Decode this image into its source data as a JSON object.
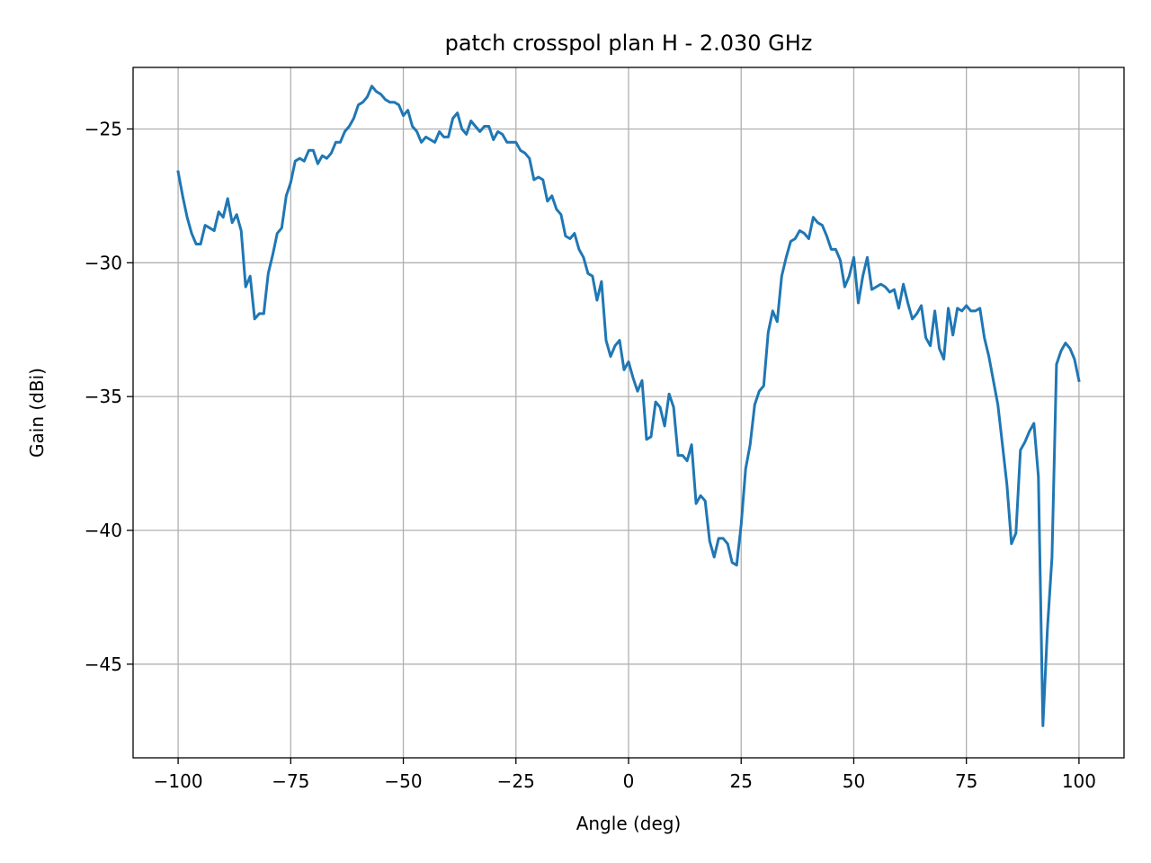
{
  "chart_data": {
    "type": "line",
    "title": "patch crosspol plan H - 2.030 GHz",
    "xlabel": "Angle (deg)",
    "ylabel": "Gain (dBi)",
    "xlim": [
      -110,
      110
    ],
    "ylim": [
      -48.5,
      -22.7
    ],
    "xticks": [
      -100,
      -75,
      -50,
      -25,
      0,
      25,
      50,
      75,
      100
    ],
    "xtick_labels": [
      "−100",
      "−75",
      "−50",
      "−25",
      "0",
      "25",
      "50",
      "75",
      "100"
    ],
    "yticks": [
      -25,
      -30,
      -35,
      -40,
      -45
    ],
    "ytick_labels": [
      "−25",
      "−30",
      "−35",
      "−40",
      "−45"
    ],
    "grid": true,
    "line_color": "#1f77b4",
    "series": [
      {
        "x": [
          -100,
          -99,
          -98,
          -97,
          -96,
          -95,
          -94,
          -93,
          -92,
          -91,
          -90,
          -89,
          -88,
          -87,
          -86,
          -85,
          -84,
          -83,
          -82,
          -81,
          -80,
          -79,
          -78,
          -77,
          -76,
          -75,
          -74,
          -73,
          -72,
          -71,
          -70,
          -69,
          -68,
          -67,
          -66,
          -65,
          -64,
          -63,
          -62,
          -61,
          -60,
          -59,
          -58,
          -57,
          -56,
          -55,
          -54,
          -53,
          -52,
          -51,
          -50,
          -49,
          -48,
          -47,
          -46,
          -45,
          -44,
          -43,
          -42,
          -41,
          -40,
          -39,
          -38,
          -37,
          -36,
          -35,
          -34,
          -33,
          -32,
          -31,
          -30,
          -29,
          -28,
          -27,
          -26,
          -25,
          -24,
          -23,
          -22,
          -21,
          -20,
          -19,
          -18,
          -17,
          -16,
          -15,
          -14,
          -13,
          -12,
          -11,
          -10,
          -9,
          -8,
          -7,
          -6,
          -5,
          -4,
          -3,
          -2,
          -1,
          0,
          1,
          2,
          3,
          4,
          5,
          6,
          7,
          8,
          9,
          10,
          11,
          12,
          13,
          14,
          15,
          16,
          17,
          18,
          19,
          20,
          21,
          22,
          23,
          24,
          25,
          26,
          27,
          28,
          29,
          30,
          31,
          32,
          33,
          34,
          35,
          36,
          37,
          38,
          39,
          40,
          41,
          42,
          43,
          44,
          45,
          46,
          47,
          48,
          49,
          50,
          51,
          52,
          53,
          54,
          55,
          56,
          57,
          58,
          59,
          60,
          61,
          62,
          63,
          64,
          65,
          66,
          67,
          68,
          69,
          70,
          71,
          72,
          73,
          74,
          75,
          76,
          77,
          78,
          79,
          80,
          81,
          82,
          83,
          84,
          85,
          86,
          87,
          88,
          89,
          90,
          91,
          92,
          93,
          94,
          95,
          96,
          97,
          98,
          99,
          100
        ],
        "y": [
          -26.6,
          -27.5,
          -28.3,
          -28.9,
          -29.3,
          -29.3,
          -28.6,
          -28.7,
          -28.8,
          -28.1,
          -28.3,
          -27.6,
          -28.5,
          -28.2,
          -28.8,
          -30.9,
          -30.5,
          -32.1,
          -31.9,
          -31.9,
          -30.4,
          -29.7,
          -28.9,
          -28.7,
          -27.5,
          -27.0,
          -26.2,
          -26.1,
          -26.2,
          -25.8,
          -25.8,
          -26.3,
          -26.0,
          -26.1,
          -25.9,
          -25.5,
          -25.5,
          -25.1,
          -24.9,
          -24.6,
          -24.1,
          -24.0,
          -23.8,
          -23.4,
          -23.6,
          -23.7,
          -23.9,
          -24.0,
          -24.0,
          -24.1,
          -24.5,
          -24.3,
          -24.9,
          -25.1,
          -25.5,
          -25.3,
          -25.4,
          -25.5,
          -25.1,
          -25.3,
          -25.3,
          -24.6,
          -24.4,
          -25.0,
          -25.2,
          -24.7,
          -24.9,
          -25.1,
          -24.9,
          -24.9,
          -25.4,
          -25.1,
          -25.2,
          -25.5,
          -25.5,
          -25.5,
          -25.8,
          -25.9,
          -26.1,
          -26.9,
          -26.8,
          -26.9,
          -27.7,
          -27.5,
          -28.0,
          -28.2,
          -29.0,
          -29.1,
          -28.9,
          -29.5,
          -29.8,
          -30.4,
          -30.5,
          -31.4,
          -30.7,
          -32.9,
          -33.5,
          -33.1,
          -32.9,
          -34.0,
          -33.7,
          -34.3,
          -34.8,
          -34.4,
          -36.6,
          -36.5,
          -35.2,
          -35.4,
          -36.1,
          -34.9,
          -35.4,
          -37.2,
          -37.2,
          -37.4,
          -36.8,
          -39.0,
          -38.7,
          -38.9,
          -40.4,
          -41.0,
          -40.3,
          -40.3,
          -40.5,
          -41.2,
          -41.3,
          -39.8,
          -37.7,
          -36.8,
          -35.3,
          -34.8,
          -34.6,
          -32.6,
          -31.8,
          -32.2,
          -30.5,
          -29.8,
          -29.2,
          -29.1,
          -28.8,
          -28.9,
          -29.1,
          -28.3,
          -28.5,
          -28.6,
          -29.0,
          -29.5,
          -29.5,
          -29.9,
          -30.9,
          -30.5,
          -29.8,
          -31.5,
          -30.5,
          -29.8,
          -31.0,
          -30.9,
          -30.8,
          -30.9,
          -31.1,
          -31.0,
          -31.7,
          -30.8,
          -31.5,
          -32.1,
          -31.9,
          -31.6,
          -32.8,
          -33.1,
          -31.8,
          -33.2,
          -33.6,
          -31.7,
          -32.7,
          -31.7,
          -31.8,
          -31.6,
          -31.8,
          -31.8,
          -31.7,
          -32.8,
          -33.5,
          -34.4,
          -35.3,
          -36.8,
          -38.3,
          -40.5,
          -40.1,
          -37.0,
          -36.7,
          -36.3,
          -36.0,
          -38.0,
          -47.3,
          -43.7,
          -41.0,
          -33.8,
          -33.3,
          -33.0,
          -33.2,
          -33.6,
          -34.4
        ]
      }
    ]
  }
}
